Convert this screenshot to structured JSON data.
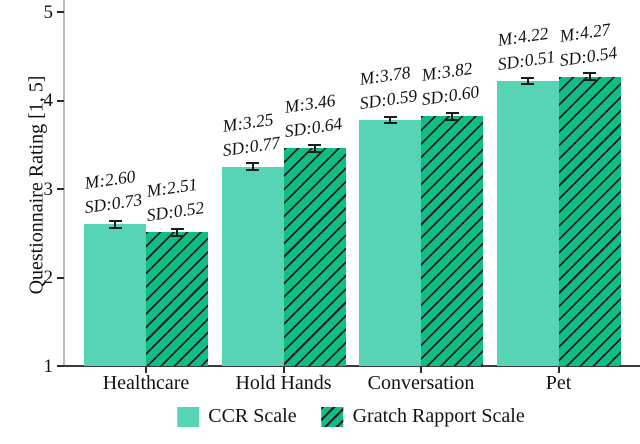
{
  "chart_data": {
    "type": "bar",
    "title": "",
    "ylabel": "Questionnaire Rating [1, 5]",
    "xlabel": "",
    "ylim": [
      1,
      5
    ],
    "yticks": [
      "5",
      "4",
      "3",
      "2",
      "1"
    ],
    "ytick_values": [
      5,
      4,
      3,
      2,
      1
    ],
    "categories": [
      "Healthcare",
      "Hold Hands",
      "Conversation",
      "Pet"
    ],
    "grid": false,
    "legend_position": "bottom-center",
    "error_bar_halfheight": 0.05,
    "series": [
      {
        "name": "CCR Scale",
        "style": "solid",
        "color": "#57d3b5",
        "values": [
          2.6,
          3.25,
          3.78,
          4.22
        ],
        "sd": [
          0.73,
          0.77,
          0.59,
          0.51
        ],
        "m_labels": [
          "M:2.60",
          "M:3.25",
          "M:3.78",
          "M:4.22"
        ],
        "sd_labels": [
          "SD:0.73",
          "SD:0.77",
          "SD:0.59",
          "SD:0.51"
        ]
      },
      {
        "name": "Gratch Rapport Scale",
        "style": "hatched",
        "color": "#10be82",
        "hatch_color": "#1a1a2e",
        "values": [
          2.51,
          3.46,
          3.82,
          4.27
        ],
        "sd": [
          0.52,
          0.64,
          0.6,
          0.54
        ],
        "m_labels": [
          "M:2.51",
          "M:3.46",
          "M:3.82",
          "M:4.27"
        ],
        "sd_labels": [
          "SD:0.52",
          "SD:0.64",
          "SD:0.60",
          "SD:0.54"
        ]
      }
    ]
  },
  "colors": {
    "background": "#ffffff",
    "y_axis_line": "#bcbcbc",
    "x_axis_line": "#3a3a3a",
    "text": "#111111"
  },
  "legend": {
    "items": [
      {
        "label": "CCR Scale",
        "style": "solid"
      },
      {
        "label": "Gratch Rapport Scale",
        "style": "hatched"
      }
    ]
  }
}
